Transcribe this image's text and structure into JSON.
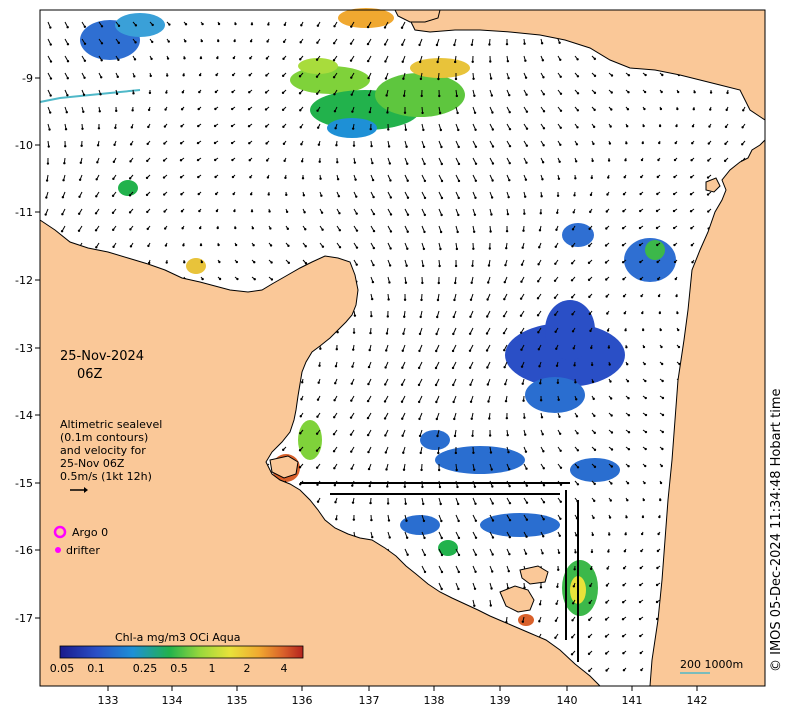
{
  "map": {
    "date_line1": "25-Nov-2024",
    "date_line2": "06Z",
    "legend_lines": [
      "Altimetric sealevel",
      "(0.1m contours)",
      "and velocity for",
      "25-Nov 06Z",
      "0.5m/s (1kt 12h)"
    ],
    "argo_label": "Argo 0",
    "drifter_label": "drifter",
    "colorbar_title": "Chl-a mg/m3 OCi Aqua",
    "colorbar_ticks": [
      "0.05",
      "0.1",
      "0.25",
      "0.5",
      "1",
      "2",
      "4"
    ],
    "scale_label": "200  1000m",
    "credit": "© IMOS 05-Dec-2024 11:34:48 Hobart time",
    "x_ticks": [
      "133",
      "134",
      "135",
      "136",
      "137",
      "138",
      "139",
      "140",
      "141",
      "142"
    ],
    "y_ticks": [
      "-9",
      "-10",
      "-11",
      "-12",
      "-13",
      "-14",
      "-15",
      "-16",
      "-17"
    ],
    "colors": {
      "land": "#FAC898",
      "ocean": "#ffffff",
      "argo": "#FF00FF",
      "drifter": "#FF00FF",
      "arrow": "#000000",
      "river": "#4FB8C8"
    }
  }
}
